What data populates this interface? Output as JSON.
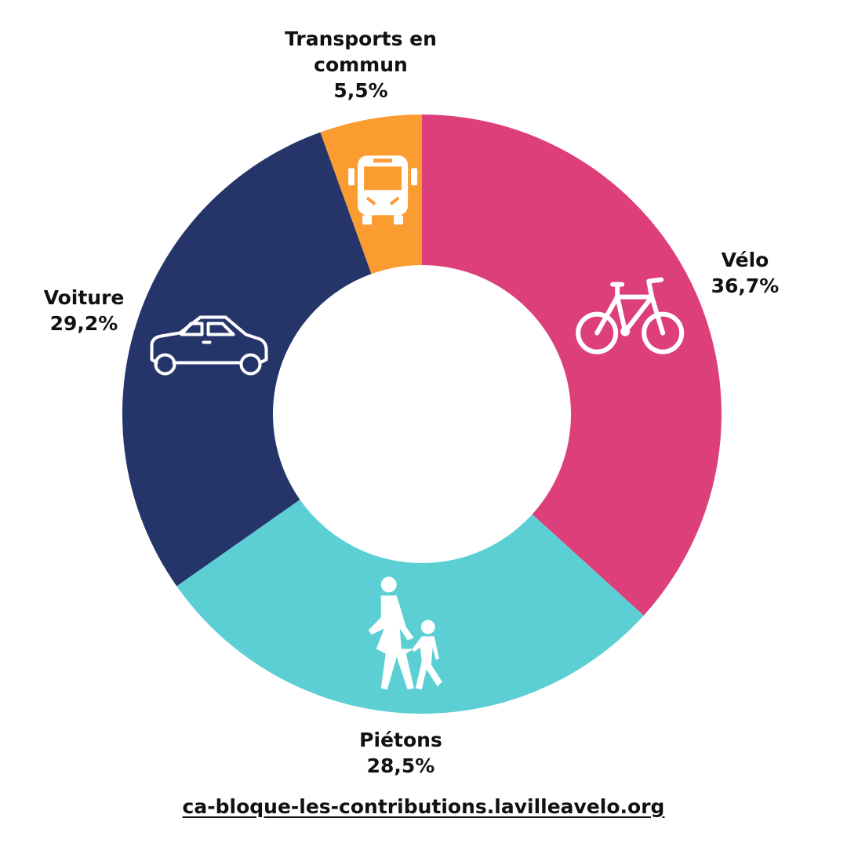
{
  "chart_data": {
    "type": "pie",
    "donut": true,
    "title": "",
    "categories": [
      "Vélo",
      "Piétons",
      "Voiture",
      "Transports en commun"
    ],
    "values": [
      36.7,
      28.5,
      29.2,
      5.5
    ],
    "value_labels": [
      "36,7%",
      "28,5%",
      "29,2%",
      "5,5%"
    ],
    "label_lines": [
      [
        "Vélo",
        "36,7%"
      ],
      [
        "Piétons",
        "28,5%"
      ],
      [
        "Voiture",
        "29,2%"
      ],
      [
        "Transports en",
        "commun",
        "5,5%"
      ]
    ],
    "colors": [
      "#dc3f7a",
      "#5ccfd5",
      "#253569",
      "#fb9c31"
    ],
    "icons": [
      "bicycle-icon",
      "pedestrians-icon",
      "car-icon",
      "bus-icon"
    ],
    "start": "top",
    "direction": "clockwise",
    "legend": "none"
  },
  "footer": {
    "link_text": "ca-bloque-les-contributions.lavilleavelo.org"
  }
}
